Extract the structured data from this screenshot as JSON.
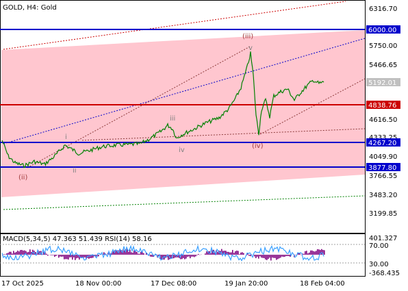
{
  "header": {
    "symbol": "GOLD",
    "timeframe": "H4:",
    "name": "Gold"
  },
  "colors": {
    "channel_fill": "#ffc6cf",
    "blue_line": "#0000cc",
    "red_line": "#cc0000",
    "candle": "#008000",
    "wave_label": "#a03c3c",
    "roman_label": "#808080",
    "macd_hist": "#800080",
    "rsi": "#3aa0ff",
    "price_tag_blue": "#0000cc",
    "price_tag_red": "#cc0000",
    "current_tag": "#c0c0c0"
  },
  "price_axis": [
    "6316.70",
    "5750.00",
    "5466.65",
    "4616.50",
    "4333.25",
    "4049.90",
    "3766.55",
    "3483.20",
    "3199.85"
  ],
  "levels": {
    "l6000": "6000.00",
    "l4838": "4838.76",
    "l4267": "4267.20",
    "l3877": "3877.80",
    "current": "5192.01"
  },
  "waves": {
    "w_ii": "(ii)",
    "w_iii": "(iii)",
    "w_iv": "(iv)",
    "w_v": "v",
    "r_i": "i",
    "r_ii": "ii",
    "r_iii": "iii",
    "r_iv": "iv"
  },
  "indicator": {
    "title": "MACD(5,34,5) 47.363 51.439 RSI(14) 58.16",
    "axis": [
      "401.327",
      "70.00",
      "30.00",
      "-368.435"
    ]
  },
  "time_axis": [
    "17 Oct 2025",
    "18 Nov 00:00",
    "17 Dec 08:00",
    "19 Jan 20:00",
    "18 Feb 04:00"
  ]
}
